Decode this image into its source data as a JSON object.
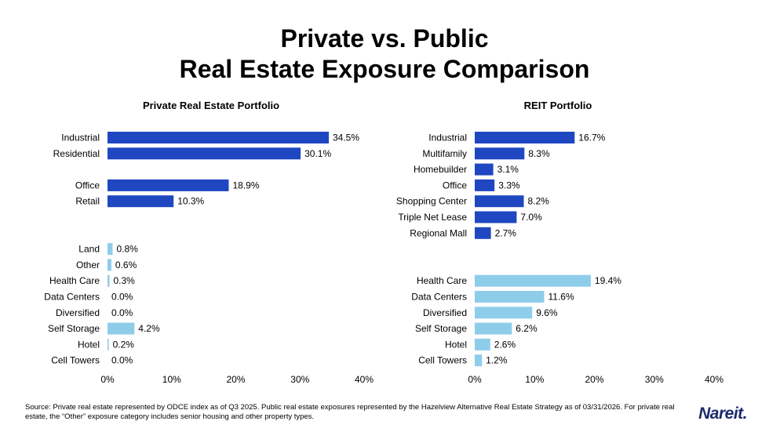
{
  "header": {
    "title_line1": "Private vs. Public",
    "title_line2": "Real Estate Exposure Comparison"
  },
  "colors": {
    "dark_blue": "#1f47c1",
    "light_blue": "#8ecdea",
    "logo": "#1d2a6b"
  },
  "chart_data": [
    {
      "type": "bar",
      "orientation": "horizontal",
      "title": "Private Real Estate Portfolio",
      "xlim": [
        0,
        40
      ],
      "xticks": [
        "0%",
        "10%",
        "20%",
        "30%",
        "40%"
      ],
      "tick_values": [
        0,
        10,
        20,
        30,
        40
      ],
      "rows": [
        {
          "label": "Industrial",
          "value": 34.5,
          "value_label": "34.5%",
          "group": "dark"
        },
        {
          "label": "Residential",
          "value": 30.1,
          "value_label": "30.1%",
          "group": "dark"
        },
        null,
        {
          "label": "Office",
          "value": 18.9,
          "value_label": "18.9%",
          "group": "dark"
        },
        {
          "label": "Retail",
          "value": 10.3,
          "value_label": "10.3%",
          "group": "dark"
        },
        null,
        null,
        {
          "label": "Land",
          "value": 0.8,
          "value_label": "0.8%",
          "group": "light"
        },
        {
          "label": "Other",
          "value": 0.6,
          "value_label": "0.6%",
          "group": "light"
        },
        {
          "label": "Health Care",
          "value": 0.3,
          "value_label": "0.3%",
          "group": "light"
        },
        {
          "label": "Data Centers",
          "value": 0.0,
          "value_label": "0.0%",
          "group": "light"
        },
        {
          "label": "Diversified",
          "value": 0.0,
          "value_label": "0.0%",
          "group": "light"
        },
        {
          "label": "Self Storage",
          "value": 4.2,
          "value_label": "4.2%",
          "group": "light"
        },
        {
          "label": "Hotel",
          "value": 0.2,
          "value_label": "0.2%",
          "group": "light"
        },
        {
          "label": "Cell Towers",
          "value": 0.0,
          "value_label": "0.0%",
          "group": "light"
        }
      ]
    },
    {
      "type": "bar",
      "orientation": "horizontal",
      "title": "REIT Portfolio",
      "xlim": [
        0,
        40
      ],
      "xticks": [
        "0%",
        "10%",
        "20%",
        "30%",
        "40%"
      ],
      "tick_values": [
        0,
        10,
        20,
        30,
        40
      ],
      "rows": [
        {
          "label": "Industrial",
          "value": 16.7,
          "value_label": "16.7%",
          "group": "dark"
        },
        {
          "label": "Multifamily",
          "value": 8.3,
          "value_label": "8.3%",
          "group": "dark"
        },
        {
          "label": "Homebuilder",
          "value": 3.1,
          "value_label": "3.1%",
          "group": "dark"
        },
        {
          "label": "Office",
          "value": 3.3,
          "value_label": "3.3%",
          "group": "dark"
        },
        {
          "label": "Shopping Center",
          "value": 8.2,
          "value_label": "8.2%",
          "group": "dark"
        },
        {
          "label": "Triple Net Lease",
          "value": 7.0,
          "value_label": "7.0%",
          "group": "dark"
        },
        {
          "label": "Regional Mall",
          "value": 2.7,
          "value_label": "2.7%",
          "group": "dark"
        },
        null,
        null,
        {
          "label": "Health Care",
          "value": 19.4,
          "value_label": "19.4%",
          "group": "light"
        },
        {
          "label": "Data Centers",
          "value": 11.6,
          "value_label": "11.6%",
          "group": "light"
        },
        {
          "label": "Diversified",
          "value": 9.6,
          "value_label": "9.6%",
          "group": "light"
        },
        {
          "label": "Self Storage",
          "value": 6.2,
          "value_label": "6.2%",
          "group": "light"
        },
        {
          "label": "Hotel",
          "value": 2.6,
          "value_label": "2.6%",
          "group": "light"
        },
        {
          "label": "Cell Towers",
          "value": 1.2,
          "value_label": "1.2%",
          "group": "light"
        }
      ]
    }
  ],
  "footer": {
    "source": "Source: Private real estate represented by ODCE index as of Q3 2025. Public real estate exposures represented by the Hazelview Alternative Real Estate Strategy as of 03/31/2026. For private real estate, the “Other” exposure category includes senior housing and other property types.",
    "logo": "Nareit."
  }
}
